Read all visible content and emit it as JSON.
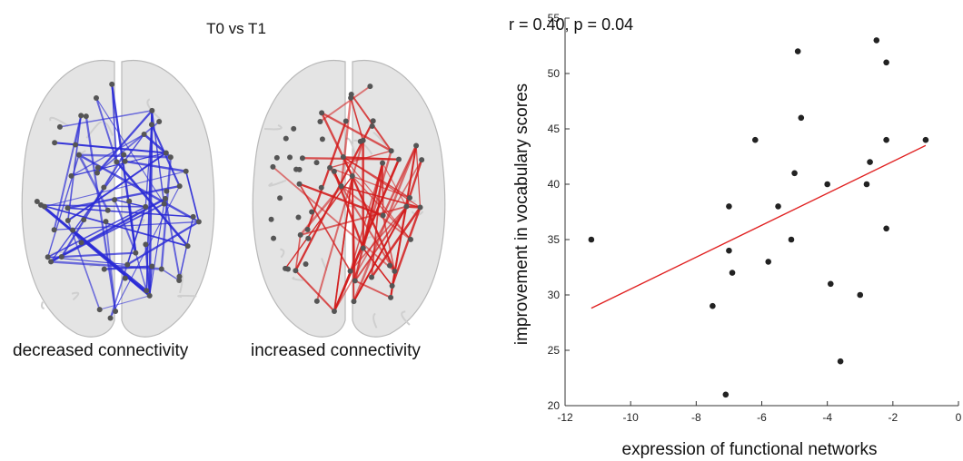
{
  "figure": {
    "title": "T0 vs T1",
    "left_caption": "decreased connectivity",
    "right_caption": "increased connectivity",
    "left_network_color": "#2a2ad6",
    "right_network_color": "#d21c1c"
  },
  "chart_data": {
    "type": "scatter",
    "xlabel": "expression of functional networks",
    "ylabel": "improvement in vocabulary scores",
    "annotation": "r = 0.40, p = 0.04",
    "xlim": [
      -12,
      0
    ],
    "ylim": [
      20,
      55
    ],
    "xticks": [
      -12,
      -10,
      -8,
      -6,
      -4,
      -2,
      0
    ],
    "yticks": [
      20,
      25,
      30,
      35,
      40,
      45,
      50,
      55
    ],
    "point_color": "#222222",
    "fit_line_color": "#e02020",
    "fit_line": {
      "x": [
        -11.2,
        -1.0
      ],
      "y": [
        28.8,
        43.5
      ]
    },
    "points": [
      {
        "x": -11.2,
        "y": 35
      },
      {
        "x": -7.5,
        "y": 29
      },
      {
        "x": -7.1,
        "y": 21
      },
      {
        "x": -7.0,
        "y": 38
      },
      {
        "x": -7.0,
        "y": 34
      },
      {
        "x": -6.9,
        "y": 32
      },
      {
        "x": -6.2,
        "y": 44
      },
      {
        "x": -5.8,
        "y": 33
      },
      {
        "x": -5.5,
        "y": 38
      },
      {
        "x": -5.1,
        "y": 35
      },
      {
        "x": -5.0,
        "y": 41
      },
      {
        "x": -4.9,
        "y": 52
      },
      {
        "x": -4.8,
        "y": 46
      },
      {
        "x": -4.0,
        "y": 40
      },
      {
        "x": -3.9,
        "y": 31
      },
      {
        "x": -3.6,
        "y": 24
      },
      {
        "x": -3.0,
        "y": 30
      },
      {
        "x": -2.8,
        "y": 40
      },
      {
        "x": -2.7,
        "y": 42
      },
      {
        "x": -2.5,
        "y": 53
      },
      {
        "x": -2.2,
        "y": 51
      },
      {
        "x": -2.2,
        "y": 44
      },
      {
        "x": -2.2,
        "y": 36
      },
      {
        "x": -1.0,
        "y": 44
      }
    ]
  }
}
